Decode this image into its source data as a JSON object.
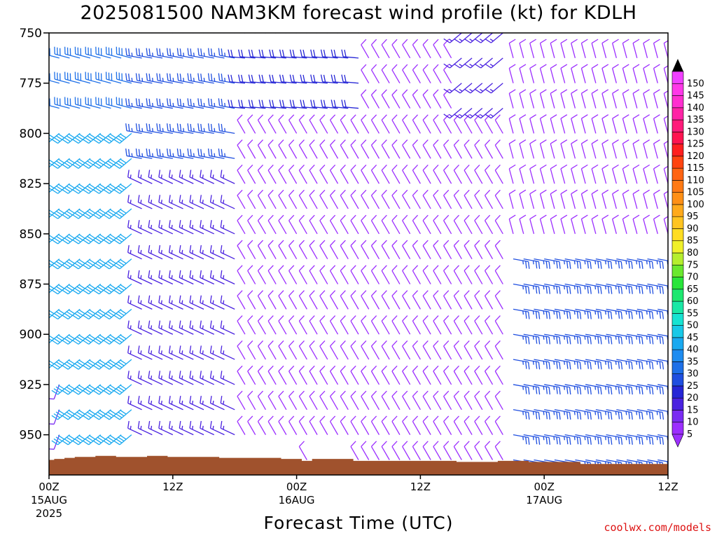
{
  "title": "2025081500 NAM3KM forecast wind profile (kt) for KDLH",
  "credit": "coolwx.com/models",
  "chart_data": {
    "type": "wind-profile",
    "title": "2025081500 NAM3KM forecast wind profile (kt) for KDLH",
    "xlabel": "Forecast Time (UTC)",
    "ylabel": "",
    "x_ticks": [
      {
        "hour": 0,
        "label": "00Z",
        "sub": [
          "15AUG",
          "2025"
        ]
      },
      {
        "hour": 12,
        "label": "12Z",
        "sub": []
      },
      {
        "hour": 24,
        "label": "00Z",
        "sub": [
          "16AUG"
        ]
      },
      {
        "hour": 36,
        "label": "12Z",
        "sub": []
      },
      {
        "hour": 48,
        "label": "00Z",
        "sub": [
          "17AUG"
        ]
      },
      {
        "hour": 60,
        "label": "12Z",
        "sub": []
      }
    ],
    "xlim": [
      0,
      60
    ],
    "y_ticks": [
      750,
      775,
      800,
      825,
      850,
      875,
      900,
      925,
      950
    ],
    "ylim_hpa": [
      750,
      970
    ],
    "pressure_levels_hpa": [
      750,
      762.5,
      775,
      787.5,
      800,
      812.5,
      825,
      837.5,
      850,
      862.5,
      875,
      887.5,
      900,
      912.5,
      925,
      937.5,
      950,
      962.5
    ],
    "hour_step": 1,
    "colorbar_kt": [
      5,
      10,
      15,
      20,
      25,
      30,
      35,
      40,
      45,
      50,
      55,
      60,
      65,
      70,
      75,
      80,
      85,
      90,
      95,
      100,
      105,
      110,
      115,
      120,
      125,
      130,
      135,
      140,
      145,
      150
    ],
    "colorbar_colors": [
      "#9c2fff",
      "#7a2cf2",
      "#4a22e0",
      "#2626d6",
      "#1f4fe0",
      "#1e70e8",
      "#1e8cf0",
      "#19a9f0",
      "#18c9e8",
      "#17e3d2",
      "#1ae8a6",
      "#1ee870",
      "#28e53a",
      "#6ae82e",
      "#b5ee2e",
      "#f0f02a",
      "#ffdd22",
      "#ffc422",
      "#ffaa1c",
      "#ff9016",
      "#ff7a14",
      "#ff6412",
      "#ff4410",
      "#ff1f1f",
      "#ff1450",
      "#ff1b7a",
      "#ff24a6",
      "#ff2fd0",
      "#ff38e8",
      "#f040ff"
    ],
    "terrain_color": "#a0522d",
    "surface_pressure_hpa": [
      962.5,
      962,
      961.5,
      961,
      961,
      960.5,
      960.5,
      961,
      961,
      961,
      960.5,
      960.5,
      961,
      961,
      961,
      961,
      961,
      961.5,
      961.5,
      961.5,
      961.5,
      961.5,
      961.5,
      962,
      962,
      963,
      962,
      962,
      962,
      962,
      963,
      963,
      963,
      963,
      963,
      963,
      963,
      963,
      963,
      963,
      963.5,
      963.5,
      963.5,
      963.5,
      963,
      963,
      963,
      963.5,
      963.5,
      963.5,
      963.5,
      963.5,
      964.5,
      964.5,
      964.5,
      964.5,
      964.5,
      964.5,
      964.5,
      964.5,
      964.5
    ],
    "regimes": [
      {
        "h0": 0,
        "h1": 9,
        "p0": 750,
        "p1": 800,
        "dir": 285,
        "spd": 30
      },
      {
        "h0": 0,
        "h1": 9,
        "p0": 800,
        "p1": 970,
        "dir": 230,
        "spd": 40
      },
      {
        "h0": 0,
        "h1": 2,
        "p0": 920,
        "p1": 970,
        "dir": 200,
        "spd": 12
      },
      {
        "h0": 9,
        "h1": 19,
        "p0": 750,
        "p1": 820,
        "dir": 280,
        "spd": 25
      },
      {
        "h0": 9,
        "h1": 19,
        "p0": 820,
        "p1": 970,
        "dir": 295,
        "spd": 15
      },
      {
        "h0": 19,
        "h1": 31,
        "p0": 750,
        "p1": 800,
        "dir": 275,
        "spd": 20
      },
      {
        "h0": 19,
        "h1": 31,
        "p0": 800,
        "p1": 970,
        "dir": 330,
        "spd": 8
      },
      {
        "h0": 31,
        "h1": 45,
        "p0": 750,
        "p1": 970,
        "dir": 330,
        "spd": 8
      },
      {
        "h0": 40,
        "h1": 45,
        "p0": 750,
        "p1": 800,
        "dir": 230,
        "spd": 15
      },
      {
        "h0": 45,
        "h1": 61,
        "p0": 750,
        "p1": 860,
        "dir": 345,
        "spd": 8
      },
      {
        "h0": 45,
        "h1": 61,
        "p0": 860,
        "p1": 970,
        "dir": 100,
        "spd": 25
      }
    ]
  }
}
